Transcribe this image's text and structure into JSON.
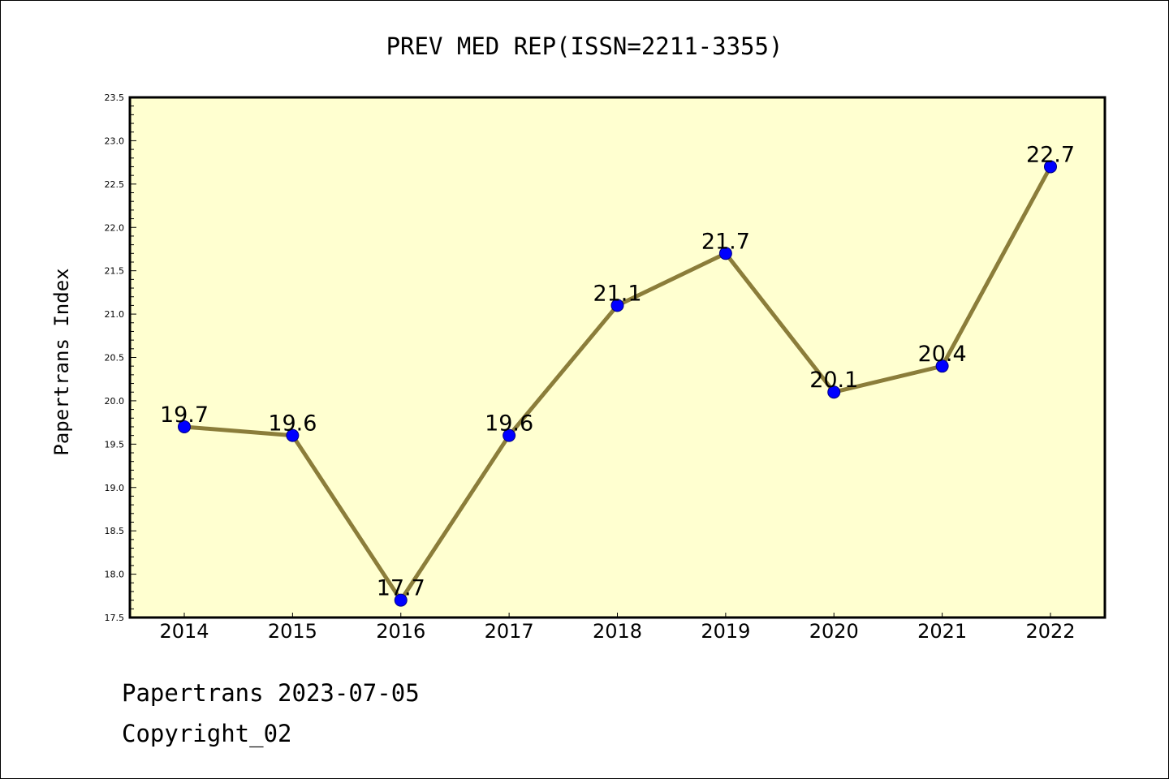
{
  "chart_data": {
    "type": "line",
    "title": "PREV MED REP(ISSN=2211-3355)",
    "ylabel": "Papertrans Index",
    "xlabel": "",
    "categories": [
      "2014",
      "2015",
      "2016",
      "2017",
      "2018",
      "2019",
      "2020",
      "2021",
      "2022"
    ],
    "series": [
      {
        "values": [
          19.7,
          19.6,
          17.7,
          19.6,
          21.1,
          21.7,
          20.1,
          20.4,
          22.7
        ],
        "data_labels": [
          "19.7",
          "19.6",
          "17.7",
          "19.6",
          "21.1",
          "21.7",
          "20.1",
          "20.4",
          "22.7"
        ]
      }
    ],
    "ylim": [
      17.5,
      23.5
    ],
    "yticks": [
      "17.5",
      "18.0",
      "18.5",
      "19.0",
      "19.5",
      "20.0",
      "20.5",
      "21.0",
      "21.5",
      "22.0",
      "22.5",
      "23.0",
      "23.5"
    ],
    "grid": false,
    "colors": {
      "plot_background": "#FFFFD0",
      "line": "#8B7D3A",
      "marker": "#0000FF"
    }
  },
  "footer": {
    "line1": "Papertrans 2023-07-05",
    "line2": "Copyright_02"
  }
}
